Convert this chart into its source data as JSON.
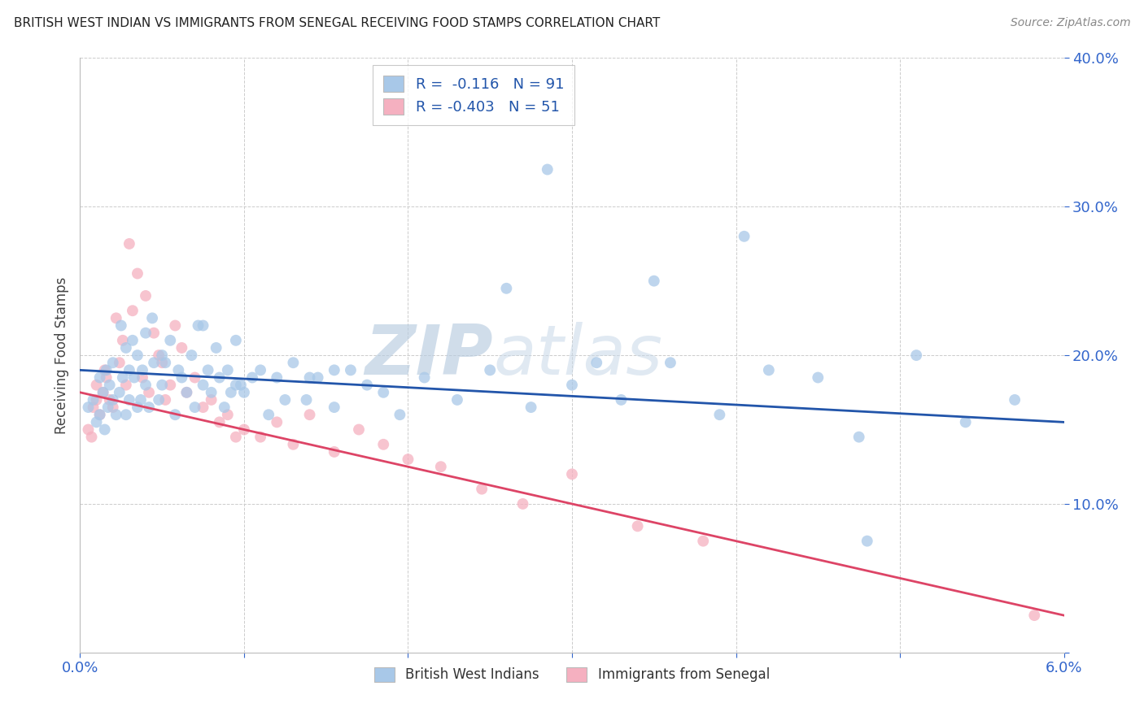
{
  "title": "BRITISH WEST INDIAN VS IMMIGRANTS FROM SENEGAL RECEIVING FOOD STAMPS CORRELATION CHART",
  "source": "Source: ZipAtlas.com",
  "ylabel": "Receiving Food Stamps",
  "xlim": [
    0.0,
    6.0
  ],
  "ylim": [
    0.0,
    40.0
  ],
  "yticks": [
    0.0,
    10.0,
    20.0,
    30.0,
    40.0
  ],
  "ytick_labels": [
    "",
    "10.0%",
    "20.0%",
    "30.0%",
    "40.0%"
  ],
  "xtick_positions": [
    0.0,
    1.0,
    2.0,
    3.0,
    4.0,
    5.0,
    6.0
  ],
  "xtick_labels_visible": [
    "0.0%",
    "",
    "",
    "",
    "",
    "",
    "6.0%"
  ],
  "legend_entry1": "R =  -0.116   N = 91",
  "legend_entry2": "R = -0.403   N = 51",
  "legend_label1": "British West Indians",
  "legend_label2": "Immigrants from Senegal",
  "color_blue": "#a8c8e8",
  "color_pink": "#f5b0c0",
  "line_color_blue": "#2255aa",
  "line_color_pink": "#dd4466",
  "watermark_zip": "ZIP",
  "watermark_atlas": "atlas",
  "background_color": "#ffffff",
  "grid_color": "#cccccc",
  "blue_scatter_x": [
    0.05,
    0.08,
    0.1,
    0.12,
    0.12,
    0.14,
    0.15,
    0.16,
    0.17,
    0.18,
    0.2,
    0.2,
    0.22,
    0.24,
    0.25,
    0.26,
    0.28,
    0.28,
    0.3,
    0.3,
    0.32,
    0.33,
    0.35,
    0.35,
    0.37,
    0.38,
    0.4,
    0.4,
    0.42,
    0.44,
    0.45,
    0.48,
    0.5,
    0.5,
    0.52,
    0.55,
    0.58,
    0.6,
    0.62,
    0.65,
    0.68,
    0.7,
    0.72,
    0.75,
    0.78,
    0.8,
    0.83,
    0.85,
    0.88,
    0.9,
    0.92,
    0.95,
    0.98,
    1.0,
    1.05,
    1.1,
    1.15,
    1.2,
    1.25,
    1.3,
    1.38,
    1.45,
    1.55,
    1.65,
    1.75,
    1.85,
    1.95,
    2.1,
    2.3,
    2.5,
    2.75,
    3.0,
    3.3,
    3.6,
    3.9,
    4.2,
    4.5,
    4.8,
    5.1,
    5.4,
    5.7,
    2.85,
    3.15,
    4.05,
    4.75,
    3.5,
    2.6,
    1.4,
    1.55,
    0.95,
    0.75
  ],
  "blue_scatter_y": [
    16.5,
    17.0,
    15.5,
    16.0,
    18.5,
    17.5,
    15.0,
    19.0,
    16.5,
    18.0,
    17.0,
    19.5,
    16.0,
    17.5,
    22.0,
    18.5,
    16.0,
    20.5,
    19.0,
    17.0,
    21.0,
    18.5,
    16.5,
    20.0,
    17.0,
    19.0,
    18.0,
    21.5,
    16.5,
    22.5,
    19.5,
    17.0,
    20.0,
    18.0,
    19.5,
    21.0,
    16.0,
    19.0,
    18.5,
    17.5,
    20.0,
    16.5,
    22.0,
    18.0,
    19.0,
    17.5,
    20.5,
    18.5,
    16.5,
    19.0,
    17.5,
    21.0,
    18.0,
    17.5,
    18.5,
    19.0,
    16.0,
    18.5,
    17.0,
    19.5,
    17.0,
    18.5,
    16.5,
    19.0,
    18.0,
    17.5,
    16.0,
    18.5,
    17.0,
    19.0,
    16.5,
    18.0,
    17.0,
    19.5,
    16.0,
    19.0,
    18.5,
    7.5,
    20.0,
    15.5,
    17.0,
    32.5,
    19.5,
    28.0,
    14.5,
    25.0,
    24.5,
    18.5,
    19.0,
    18.0,
    22.0
  ],
  "pink_scatter_x": [
    0.05,
    0.07,
    0.08,
    0.1,
    0.1,
    0.12,
    0.14,
    0.15,
    0.16,
    0.18,
    0.2,
    0.22,
    0.24,
    0.26,
    0.28,
    0.3,
    0.32,
    0.35,
    0.38,
    0.4,
    0.42,
    0.45,
    0.48,
    0.5,
    0.52,
    0.55,
    0.58,
    0.62,
    0.65,
    0.7,
    0.75,
    0.8,
    0.85,
    0.9,
    0.95,
    1.0,
    1.1,
    1.2,
    1.3,
    1.4,
    1.55,
    1.7,
    1.85,
    2.0,
    2.2,
    2.45,
    2.7,
    3.0,
    3.4,
    3.8,
    5.82
  ],
  "pink_scatter_y": [
    15.0,
    14.5,
    16.5,
    17.0,
    18.0,
    16.0,
    17.5,
    19.0,
    18.5,
    17.0,
    16.5,
    22.5,
    19.5,
    21.0,
    18.0,
    27.5,
    23.0,
    25.5,
    18.5,
    24.0,
    17.5,
    21.5,
    20.0,
    19.5,
    17.0,
    18.0,
    22.0,
    20.5,
    17.5,
    18.5,
    16.5,
    17.0,
    15.5,
    16.0,
    14.5,
    15.0,
    14.5,
    15.5,
    14.0,
    16.0,
    13.5,
    15.0,
    14.0,
    13.0,
    12.5,
    11.0,
    10.0,
    12.0,
    8.5,
    7.5,
    2.5
  ],
  "blue_line_x": [
    0.0,
    6.0
  ],
  "blue_line_y": [
    19.0,
    15.5
  ],
  "pink_line_x": [
    0.0,
    6.0
  ],
  "pink_line_y": [
    17.5,
    2.5
  ]
}
